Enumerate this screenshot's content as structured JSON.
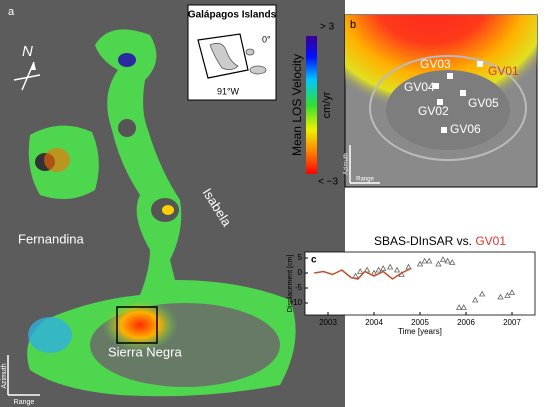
{
  "panel_a": {
    "label": "a",
    "north": "N",
    "islands": [
      "Fernandina",
      "Isabela",
      "Sierra Negra"
    ],
    "azimuth": "Azimuth",
    "range": "Range",
    "inset": {
      "title": "Galápagos Islands",
      "lat": "0°",
      "lon": "91°W"
    },
    "colorbar": {
      "title": "Mean LOS Velocity",
      "unit": "cm/yr",
      "max_label": "> 3",
      "min_label": "< −3"
    }
  },
  "panel_b": {
    "label": "b",
    "stations": [
      "GV01",
      "GV02",
      "GV03",
      "GV04",
      "GV05",
      "GV06"
    ],
    "highlight_color": "#e0342a",
    "azimuth": "Azimuth",
    "range": "Range"
  },
  "chart_data": {
    "type": "scatter",
    "label": "c",
    "title": "SBAS-DInSAR vs.",
    "title_highlight": "GV01",
    "title_highlight_color": "#e0342a",
    "x_label": "Time [years]",
    "y_label": "Displacement [cm]",
    "xlim": [
      2002.5,
      2007.5
    ],
    "xticks": [
      2003,
      2004,
      2005,
      2006,
      2007
    ],
    "ylim": [
      -14,
      7
    ],
    "yticks": [
      5,
      0,
      -5,
      -10
    ],
    "series": [
      {
        "marker": "triangle",
        "color": "#666666",
        "x": [
          2003.6,
          2003.7,
          2003.85,
          2004.0,
          2004.1,
          2004.2,
          2004.35,
          2004.5,
          2004.6,
          2004.75,
          2005.0,
          2005.1,
          2005.2,
          2005.4,
          2005.5,
          2005.6,
          2005.7,
          2005.85,
          2005.95,
          2006.2,
          2006.35,
          2006.75,
          2006.9,
          2007.0
        ],
        "values": [
          -1,
          0.5,
          1,
          0,
          1,
          1.5,
          2,
          1,
          -0.5,
          2,
          3,
          4,
          4,
          3,
          4.5,
          4,
          3.5,
          -11.5,
          -11.5,
          -9,
          -7,
          -8,
          -7.5,
          -6.5
        ]
      },
      {
        "marker": "line",
        "color": "#c0502a",
        "x": [
          2002.7,
          2002.9,
          2003.1,
          2003.3,
          2003.5,
          2003.65,
          2003.8,
          2004.0,
          2004.2,
          2004.4,
          2004.6,
          2004.8
        ],
        "values": [
          0,
          0.5,
          -0.5,
          1,
          -1.5,
          -2,
          0.5,
          -1,
          0.5,
          -2,
          0,
          1.5
        ]
      }
    ]
  }
}
